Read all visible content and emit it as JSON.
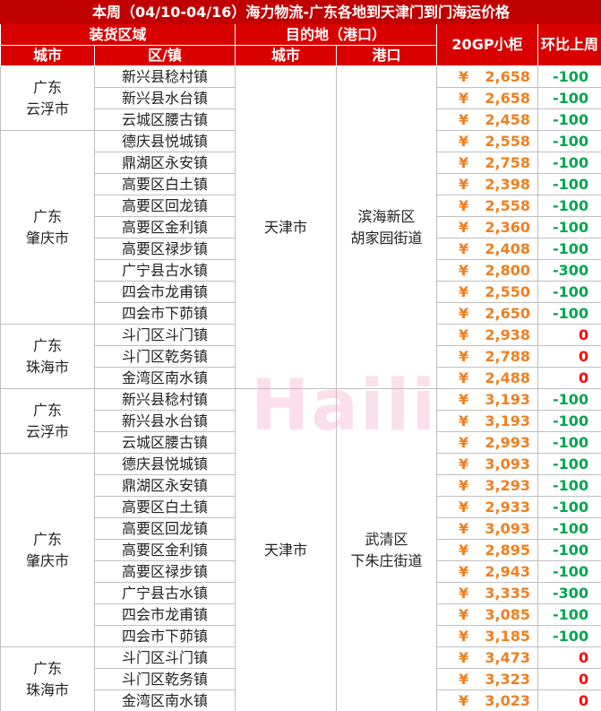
{
  "title": "本周（04/10-04/16）海力物流-广东各地到天津门到门海运价格",
  "watermark": "Haili",
  "header": {
    "loading_area": "装货区域",
    "destination": "目的地（港口）",
    "container": "20GP小柜",
    "change": "环比上周",
    "city": "城市",
    "town": "区/镇",
    "dest_city": "城市",
    "port": "港口"
  },
  "sections": [
    {
      "dest_city": "天津市",
      "port_lines": [
        "滨海新区",
        "胡家园街道"
      ],
      "groups": [
        {
          "city_lines": [
            "广东",
            "云浮市"
          ],
          "rows": [
            {
              "town": "新兴县稔村镇",
              "currency": "¥",
              "price": "2,658",
              "change": "-100"
            },
            {
              "town": "新兴县水台镇",
              "currency": "¥",
              "price": "2,658",
              "change": "-100"
            },
            {
              "town": "云城区腰古镇",
              "currency": "¥",
              "price": "2,458",
              "change": "-100"
            }
          ]
        },
        {
          "city_lines": [
            "广东",
            "肇庆市"
          ],
          "rows": [
            {
              "town": "德庆县悦城镇",
              "currency": "¥",
              "price": "2,558",
              "change": "-100"
            },
            {
              "town": "鼎湖区永安镇",
              "currency": "¥",
              "price": "2,758",
              "change": "-100"
            },
            {
              "town": "高要区白土镇",
              "currency": "¥",
              "price": "2,398",
              "change": "-100"
            },
            {
              "town": "高要区回龙镇",
              "currency": "¥",
              "price": "2,558",
              "change": "-100"
            },
            {
              "town": "高要区金利镇",
              "currency": "¥",
              "price": "2,360",
              "change": "-100"
            },
            {
              "town": "高要区禄步镇",
              "currency": "¥",
              "price": "2,408",
              "change": "-100"
            },
            {
              "town": "广宁县古水镇",
              "currency": "¥",
              "price": "2,800",
              "change": "-300"
            },
            {
              "town": "四会市龙甫镇",
              "currency": "¥",
              "price": "2,550",
              "change": "-100"
            },
            {
              "town": "四会市下茆镇",
              "currency": "¥",
              "price": "2,650",
              "change": "-100"
            }
          ]
        },
        {
          "city_lines": [
            "广东",
            "珠海市"
          ],
          "rows": [
            {
              "town": "斗门区斗门镇",
              "currency": "¥",
              "price": "2,938",
              "change": "0"
            },
            {
              "town": "斗门区乾务镇",
              "currency": "¥",
              "price": "2,788",
              "change": "0"
            },
            {
              "town": "金湾区南水镇",
              "currency": "¥",
              "price": "2,488",
              "change": "0"
            }
          ]
        }
      ]
    },
    {
      "dest_city": "天津市",
      "port_lines": [
        "武清区",
        "下朱庄街道"
      ],
      "groups": [
        {
          "city_lines": [
            "广东",
            "云浮市"
          ],
          "rows": [
            {
              "town": "新兴县稔村镇",
              "currency": "¥",
              "price": "3,193",
              "change": "-100"
            },
            {
              "town": "新兴县水台镇",
              "currency": "¥",
              "price": "3,193",
              "change": "-100"
            },
            {
              "town": "云城区腰古镇",
              "currency": "¥",
              "price": "2,993",
              "change": "-100"
            }
          ]
        },
        {
          "city_lines": [
            "广东",
            "肇庆市"
          ],
          "rows": [
            {
              "town": "德庆县悦城镇",
              "currency": "¥",
              "price": "3,093",
              "change": "-100"
            },
            {
              "town": "鼎湖区永安镇",
              "currency": "¥",
              "price": "3,293",
              "change": "-100"
            },
            {
              "town": "高要区白土镇",
              "currency": "¥",
              "price": "2,933",
              "change": "-100"
            },
            {
              "town": "高要区回龙镇",
              "currency": "¥",
              "price": "3,093",
              "change": "-100"
            },
            {
              "town": "高要区金利镇",
              "currency": "¥",
              "price": "2,895",
              "change": "-100"
            },
            {
              "town": "高要区禄步镇",
              "currency": "¥",
              "price": "2,943",
              "change": "-100"
            },
            {
              "town": "广宁县古水镇",
              "currency": "¥",
              "price": "3,335",
              "change": "-300"
            },
            {
              "town": "四会市龙甫镇",
              "currency": "¥",
              "price": "3,085",
              "change": "-100"
            },
            {
              "town": "四会市下茆镇",
              "currency": "¥",
              "price": "3,185",
              "change": "-100"
            }
          ]
        },
        {
          "city_lines": [
            "广东",
            "珠海市"
          ],
          "rows": [
            {
              "town": "斗门区斗门镇",
              "currency": "¥",
              "price": "3,473",
              "change": "0"
            },
            {
              "town": "斗门区乾务镇",
              "currency": "¥",
              "price": "3,323",
              "change": "0"
            },
            {
              "town": "金湾区南水镇",
              "currency": "¥",
              "price": "3,023",
              "change": "0"
            }
          ]
        }
      ]
    }
  ]
}
